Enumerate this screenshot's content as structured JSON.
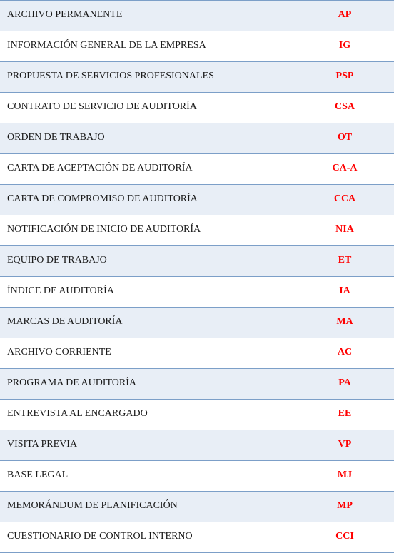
{
  "table": {
    "row_bg_odd": "#e8eef6",
    "row_bg_even": "#ffffff",
    "border_color": "#7c9fc8",
    "desc_color": "#1a1a1a",
    "code_color": "#ff0000",
    "rows": [
      {
        "desc": "ARCHIVO PERMANENTE",
        "code": "AP"
      },
      {
        "desc": "INFORMACIÓN GENERAL DE LA EMPRESA",
        "code": "IG"
      },
      {
        "desc": "PROPUESTA DE SERVICIOS PROFESIONALES",
        "code": "PSP"
      },
      {
        "desc": "CONTRATO DE SERVICIO DE AUDITORÍA",
        "code": "CSA"
      },
      {
        "desc": "ORDEN DE TRABAJO",
        "code": "OT"
      },
      {
        "desc": "CARTA DE ACEPTACIÓN DE AUDITORÍA",
        "code": "CA-A"
      },
      {
        "desc": "CARTA DE COMPROMISO DE AUDITORÍA",
        "code": "CCA"
      },
      {
        "desc": "NOTIFICACIÓN DE INICIO DE AUDITORÍA",
        "code": "NIA"
      },
      {
        "desc": "EQUIPO DE TRABAJO",
        "code": "ET"
      },
      {
        "desc": "ÍNDICE DE AUDITORÍA",
        "code": "IA"
      },
      {
        "desc": "MARCAS DE AUDITORÍA",
        "code": "MA"
      },
      {
        "desc": "ARCHIVO CORRIENTE",
        "code": "AC"
      },
      {
        "desc": "PROGRAMA DE AUDITORÍA",
        "code": "PA"
      },
      {
        "desc": "ENTREVISTA AL ENCARGADO",
        "code": "EE"
      },
      {
        "desc": "VISITA PREVIA",
        "code": "VP"
      },
      {
        "desc": "BASE LEGAL",
        "code": "MJ"
      },
      {
        "desc": "MEMORÁNDUM DE PLANIFICACIÓN",
        "code": "MP"
      },
      {
        "desc": "CUESTIONARIO DE CONTROL INTERNO",
        "code": "CCI"
      }
    ]
  }
}
